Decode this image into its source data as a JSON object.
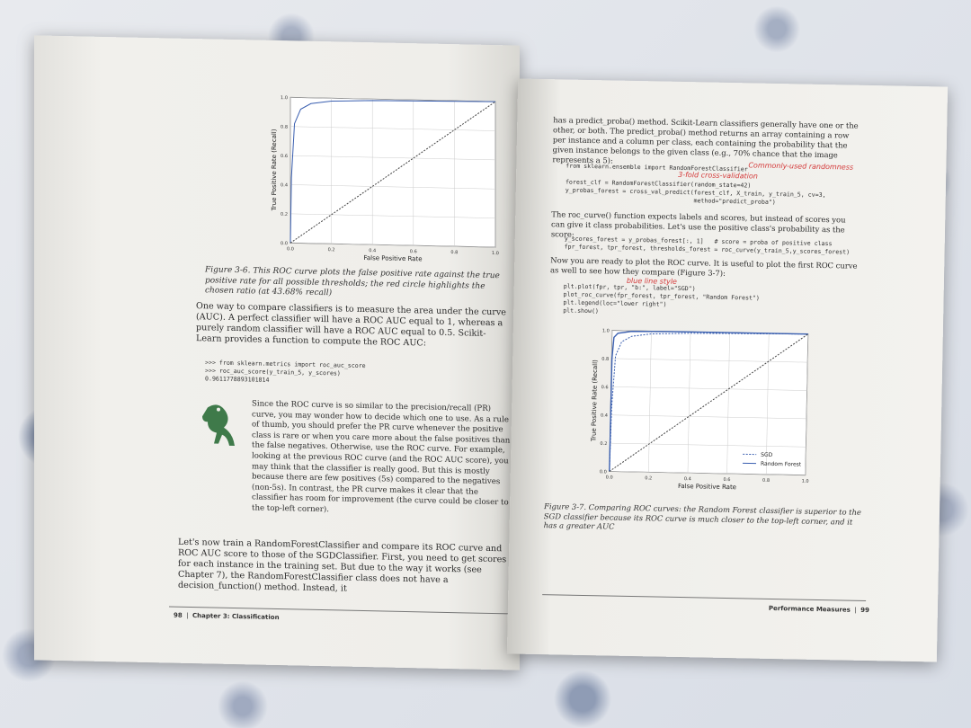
{
  "left_page": {
    "figure": {
      "y_label": "True Positive Rate (Recall)",
      "x_label": "False Positive Rate",
      "ticks": [
        "0.0",
        "0.2",
        "0.4",
        "0.6",
        "0.8",
        "1.0"
      ],
      "caption": "Figure 3-6. This ROC curve plots the false positive rate against the true positive rate for all possible thresholds; the red circle highlights the chosen ratio (at 43.68% recall)"
    },
    "para1": "One way to compare classifiers is to measure the area under the curve (AUC). A perfect classifier will have a ROC AUC equal to 1, whereas a purely random classifier will have a ROC AUC equal to 0.5. Scikit-Learn provides a function to compute the ROC AUC:",
    "code1": [
      ">>> from sklearn.metrics import roc_auc_score",
      ">>> roc_auc_score(y_train_5, y_scores)",
      "0.9611778893101814"
    ],
    "tip": "Since the ROC curve is so similar to the precision/recall (PR) curve, you may wonder how to decide which one to use. As a rule of thumb, you should prefer the PR curve whenever the positive class is rare or when you care more about the false positives than the false negatives. Otherwise, use the ROC curve. For example, looking at the previous ROC curve (and the ROC AUC score), you may think that the classifier is really good. But this is mostly because there are few positives (5s) compared to the negatives (non-5s). In contrast, the PR curve makes it clear that the classifier has room for improvement (the curve could be closer to the top-left corner).",
    "para2": "Let's now train a RandomForestClassifier and compare its ROC curve and ROC AUC score to those of the SGDClassifier. First, you need to get scores for each instance in the training set. But due to the way it works (see Chapter 7), the RandomForestClassifier class does not have a decision_function() method. Instead, it",
    "footer_page": "98",
    "footer_chapter": "Chapter 3: Classification"
  },
  "right_page": {
    "para1": "has a predict_proba() method. Scikit-Learn classifiers generally have one or the other, or both. The predict_proba() method returns an array containing a row per instance and a column per class, each containing the probability that the given instance belongs to the given class (e.g., 70% chance that the image represents a 5):",
    "code1": [
      "from sklearn.ensemble import RandomForestClassifier",
      "",
      "forest_clf = RandomForestClassifier(random_state=42)",
      "y_probas_forest = cross_val_predict(forest_clf, X_train, y_train_5, cv=3,",
      "                                    method=\"predict_proba\")"
    ],
    "note1": "Commonly-used randomness",
    "note2": "3-fold cross-validation",
    "para2": "The roc_curve() function expects labels and scores, but instead of scores you can give it class probabilities. Let's use the positive class's probability as the score:",
    "code2": [
      "y_scores_forest = y_probas_forest[:, 1]   # score = proba of positive class",
      "fpr_forest, tpr_forest, thresholds_forest = roc_curve(y_train_5,y_scores_forest)"
    ],
    "para3": "Now you are ready to plot the ROC curve. It is useful to plot the first ROC curve as well to see how they compare (Figure 3-7):",
    "code3": [
      "plt.plot(fpr, tpr, \"b:\", label=\"SGD\")",
      "plot_roc_curve(fpr_forest, tpr_forest, \"Random Forest\")",
      "plt.legend(loc=\"lower right\")",
      "plt.show()"
    ],
    "note3": "blue line style",
    "figure": {
      "y_label": "True Positive Rate (Recall)",
      "x_label": "False Positive Rate",
      "ticks": [
        "0.0",
        "0.2",
        "0.4",
        "0.6",
        "0.8",
        "1.0"
      ],
      "legend": [
        "SGD",
        "Random Forest"
      ],
      "caption": "Figure 3-7. Comparing ROC curves: the Random Forest classifier is superior to the SGD classifier because its ROC curve is much closer to the top-left corner, and it has a greater AUC"
    },
    "footer_section": "Performance Measures",
    "footer_page": "99"
  },
  "chart_data": [
    {
      "type": "line",
      "xlabel": "False Positive Rate",
      "ylabel": "True Positive Rate (Recall)",
      "xlim": [
        0,
        1
      ],
      "ylim": [
        0,
        1
      ],
      "grid": true,
      "series": [
        {
          "x": [
            0,
            0.005,
            0.02,
            0.05,
            0.1,
            0.2,
            0.4,
            0.7,
            1.0
          ],
          "y": [
            0,
            0.45,
            0.82,
            0.92,
            0.96,
            0.98,
            0.99,
            0.995,
            1.0
          ]
        },
        {
          "x": [
            0,
            1
          ],
          "y": [
            0,
            1
          ]
        }
      ]
    },
    {
      "type": "line",
      "xlabel": "False Positive Rate",
      "ylabel": "True Positive Rate (Recall)",
      "xlim": [
        0,
        1
      ],
      "ylim": [
        0,
        1
      ],
      "grid": true,
      "legend": "lower-right",
      "series": [
        {
          "name": "SGD",
          "x": [
            0,
            0.005,
            0.02,
            0.05,
            0.1,
            0.2,
            0.4,
            0.7,
            1.0
          ],
          "y": [
            0,
            0.45,
            0.82,
            0.92,
            0.96,
            0.98,
            0.99,
            0.995,
            1.0
          ]
        },
        {
          "name": "Random Forest",
          "x": [
            0,
            0.002,
            0.01,
            0.03,
            0.1,
            0.3,
            1.0
          ],
          "y": [
            0,
            0.8,
            0.95,
            0.98,
            0.995,
            0.999,
            1.0
          ]
        },
        {
          "x": [
            0,
            1
          ],
          "y": [
            0,
            1
          ]
        }
      ]
    }
  ],
  "colors": {
    "sgd": "#3a5fb0",
    "forest": "#3a5fb0",
    "annotation": "#d43a3a",
    "highlight": "#f3f07a"
  }
}
